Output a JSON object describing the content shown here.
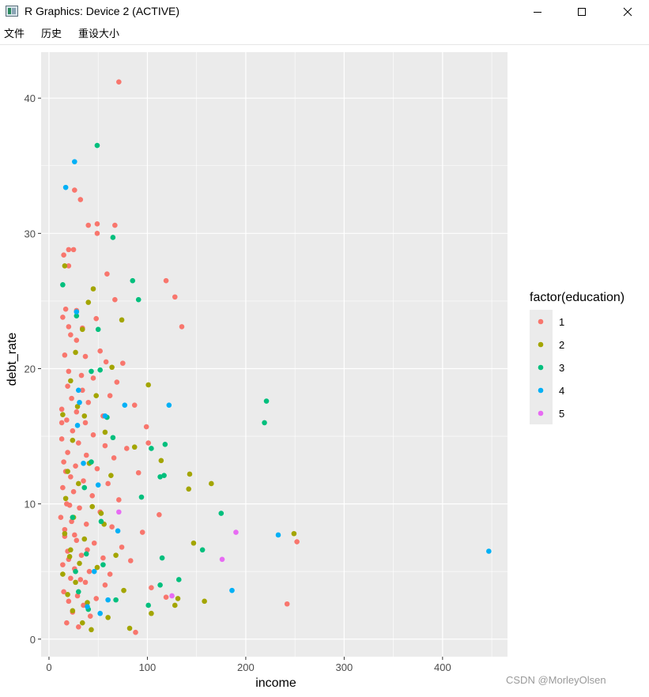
{
  "window": {
    "title": "R Graphics: Device 2 (ACTIVE)"
  },
  "menu": {
    "items": [
      "文件",
      "历史",
      "重设大小"
    ]
  },
  "watermark": "CSDN @MorleyOlsen",
  "colors": {
    "panel_bg": "#EBEBEB",
    "grid": "#FFFFFF",
    "edu1": "#F8766D",
    "edu2": "#A3A500",
    "edu3": "#00BF7D",
    "edu4": "#00B0F6",
    "edu5": "#E76BF3"
  },
  "chart_data": {
    "type": "scatter",
    "title": "",
    "xlabel": "income",
    "ylabel": "debt_rate",
    "xlim": [
      -8,
      466
    ],
    "ylim": [
      -1.3,
      43.4
    ],
    "x_ticks": [
      0,
      100,
      200,
      300,
      400
    ],
    "y_ticks": [
      0,
      10,
      20,
      30,
      40
    ],
    "grid": true,
    "legend": {
      "title": "factor(education)",
      "placement": "right",
      "entries": [
        "1",
        "2",
        "3",
        "4",
        "5"
      ]
    },
    "series": [
      {
        "name": "1",
        "color": "#F8766D",
        "points": [
          [
            71,
            41.2
          ],
          [
            26,
            33.2
          ],
          [
            32,
            32.5
          ],
          [
            67,
            30.6
          ],
          [
            49,
            30.7
          ],
          [
            40,
            30.6
          ],
          [
            49,
            30.0
          ],
          [
            20,
            28.8
          ],
          [
            25,
            28.8
          ],
          [
            15,
            28.4
          ],
          [
            20,
            27.6
          ],
          [
            59,
            27.0
          ],
          [
            119,
            26.5
          ],
          [
            128,
            25.3
          ],
          [
            67,
            25.1
          ],
          [
            17,
            24.4
          ],
          [
            28,
            24.3
          ],
          [
            14,
            23.8
          ],
          [
            48,
            23.7
          ],
          [
            20,
            23.1
          ],
          [
            135,
            23.1
          ],
          [
            34,
            23.0
          ],
          [
            22,
            22.5
          ],
          [
            28,
            22.1
          ],
          [
            52,
            21.3
          ],
          [
            16,
            21.0
          ],
          [
            37,
            20.9
          ],
          [
            58,
            20.5
          ],
          [
            75,
            20.4
          ],
          [
            20,
            19.8
          ],
          [
            33,
            19.5
          ],
          [
            45,
            19.3
          ],
          [
            69,
            19.0
          ],
          [
            19,
            18.7
          ],
          [
            34,
            18.4
          ],
          [
            62,
            18.0
          ],
          [
            23,
            17.8
          ],
          [
            40,
            17.5
          ],
          [
            87,
            17.3
          ],
          [
            13,
            17.0
          ],
          [
            28,
            16.8
          ],
          [
            55,
            16.5
          ],
          [
            18,
            16.2
          ],
          [
            37,
            16.0
          ],
          [
            99,
            15.7
          ],
          [
            24,
            15.4
          ],
          [
            45,
            15.1
          ],
          [
            13,
            14.8
          ],
          [
            30,
            14.5
          ],
          [
            57,
            14.3
          ],
          [
            79,
            14.1
          ],
          [
            101,
            14.5
          ],
          [
            19,
            13.8
          ],
          [
            38,
            13.6
          ],
          [
            66,
            13.4
          ],
          [
            15,
            13.1
          ],
          [
            27,
            12.8
          ],
          [
            49,
            12.6
          ],
          [
            91,
            12.3
          ],
          [
            22,
            12.0
          ],
          [
            35,
            11.7
          ],
          [
            60,
            11.5
          ],
          [
            14,
            11.2
          ],
          [
            25,
            10.9
          ],
          [
            44,
            10.6
          ],
          [
            71,
            10.3
          ],
          [
            18,
            10.0
          ],
          [
            31,
            9.7
          ],
          [
            52,
            9.4
          ],
          [
            112,
            9.2
          ],
          [
            12,
            9.0
          ],
          [
            23,
            8.7
          ],
          [
            38,
            8.5
          ],
          [
            64,
            8.3
          ],
          [
            95,
            7.9
          ],
          [
            16,
            7.6
          ],
          [
            28,
            7.3
          ],
          [
            46,
            7.1
          ],
          [
            74,
            6.8
          ],
          [
            252,
            7.2
          ],
          [
            19,
            6.5
          ],
          [
            33,
            6.2
          ],
          [
            55,
            6.0
          ],
          [
            83,
            5.8
          ],
          [
            14,
            5.5
          ],
          [
            26,
            5.2
          ],
          [
            41,
            5.0
          ],
          [
            62,
            4.8
          ],
          [
            22,
            4.5
          ],
          [
            37,
            4.2
          ],
          [
            57,
            4.0
          ],
          [
            104,
            3.8
          ],
          [
            15,
            3.5
          ],
          [
            29,
            3.2
          ],
          [
            48,
            3.0
          ],
          [
            119,
            3.1
          ],
          [
            20,
            2.8
          ],
          [
            35,
            2.5
          ],
          [
            242,
            2.6
          ],
          [
            24,
            2.0
          ],
          [
            42,
            1.7
          ],
          [
            18,
            1.2
          ],
          [
            30,
            0.9
          ],
          [
            88,
            0.5
          ],
          [
            13,
            16.0
          ],
          [
            17,
            12.4
          ],
          [
            21,
            9.9
          ],
          [
            16,
            8.1
          ],
          [
            26,
            7.7
          ],
          [
            20,
            5.9
          ],
          [
            32,
            4.4
          ],
          [
            39,
            6.6
          ]
        ]
      },
      {
        "name": "2",
        "color": "#A3A500",
        "points": [
          [
            16,
            27.6
          ],
          [
            45,
            25.9
          ],
          [
            40,
            24.9
          ],
          [
            74,
            23.6
          ],
          [
            34,
            22.9
          ],
          [
            27,
            21.2
          ],
          [
            64,
            20.1
          ],
          [
            101,
            18.8
          ],
          [
            22,
            19.1
          ],
          [
            48,
            18.0
          ],
          [
            36,
            16.5
          ],
          [
            14,
            16.6
          ],
          [
            57,
            15.3
          ],
          [
            87,
            14.2
          ],
          [
            24,
            14.7
          ],
          [
            41,
            13.0
          ],
          [
            114,
            13.2
          ],
          [
            19,
            12.4
          ],
          [
            63,
            12.1
          ],
          [
            143,
            12.2
          ],
          [
            30,
            11.5
          ],
          [
            165,
            11.5
          ],
          [
            142,
            11.1
          ],
          [
            17,
            10.4
          ],
          [
            44,
            9.8
          ],
          [
            25,
            9.0
          ],
          [
            56,
            8.5
          ],
          [
            16,
            7.8
          ],
          [
            249,
            7.8
          ],
          [
            36,
            7.4
          ],
          [
            147,
            7.1
          ],
          [
            22,
            6.6
          ],
          [
            68,
            6.2
          ],
          [
            31,
            5.6
          ],
          [
            49,
            5.3
          ],
          [
            14,
            4.8
          ],
          [
            27,
            4.2
          ],
          [
            76,
            3.6
          ],
          [
            131,
            3.0
          ],
          [
            19,
            3.3
          ],
          [
            39,
            2.7
          ],
          [
            158,
            2.8
          ],
          [
            128,
            2.5
          ],
          [
            24,
            2.1
          ],
          [
            104,
            1.9
          ],
          [
            34,
            1.2
          ],
          [
            60,
            1.6
          ],
          [
            82,
            0.8
          ],
          [
            43,
            0.7
          ],
          [
            29,
            17.2
          ],
          [
            53,
            9.3
          ],
          [
            21,
            6.1
          ]
        ]
      },
      {
        "name": "3",
        "color": "#00BF7D",
        "points": [
          [
            49,
            36.5
          ],
          [
            65,
            29.7
          ],
          [
            14,
            26.2
          ],
          [
            85,
            26.5
          ],
          [
            91,
            25.1
          ],
          [
            28,
            23.9
          ],
          [
            50,
            22.9
          ],
          [
            43,
            19.8
          ],
          [
            52,
            19.9
          ],
          [
            221,
            17.6
          ],
          [
            219,
            16.0
          ],
          [
            59,
            16.4
          ],
          [
            118,
            14.4
          ],
          [
            104,
            14.1
          ],
          [
            43,
            13.1
          ],
          [
            117,
            12.1
          ],
          [
            113,
            12.0
          ],
          [
            36,
            11.2
          ],
          [
            94,
            10.5
          ],
          [
            175,
            9.3
          ],
          [
            24,
            9.0
          ],
          [
            53,
            8.7
          ],
          [
            156,
            6.6
          ],
          [
            38,
            6.3
          ],
          [
            115,
            6.0
          ],
          [
            55,
            5.5
          ],
          [
            27,
            5.0
          ],
          [
            132,
            4.4
          ],
          [
            113,
            4.0
          ],
          [
            30,
            3.5
          ],
          [
            101,
            2.5
          ],
          [
            68,
            2.9
          ],
          [
            40,
            2.2
          ],
          [
            65,
            14.9
          ]
        ]
      },
      {
        "name": "4",
        "color": "#00B0F6",
        "points": [
          [
            26,
            35.3
          ],
          [
            17,
            33.4
          ],
          [
            28,
            24.2
          ],
          [
            30,
            18.4
          ],
          [
            77,
            17.3
          ],
          [
            122,
            17.3
          ],
          [
            31,
            17.5
          ],
          [
            57,
            16.5
          ],
          [
            29,
            15.8
          ],
          [
            35,
            13.0
          ],
          [
            50,
            11.4
          ],
          [
            70,
            8.0
          ],
          [
            233,
            7.7
          ],
          [
            447,
            6.5
          ],
          [
            46,
            5.0
          ],
          [
            186,
            3.6
          ],
          [
            60,
            2.9
          ],
          [
            52,
            1.9
          ],
          [
            39,
            2.4
          ]
        ]
      },
      {
        "name": "5",
        "color": "#E76BF3",
        "points": [
          [
            190,
            7.9
          ],
          [
            176,
            5.9
          ],
          [
            125,
            3.2
          ],
          [
            71,
            9.4
          ]
        ]
      }
    ]
  }
}
